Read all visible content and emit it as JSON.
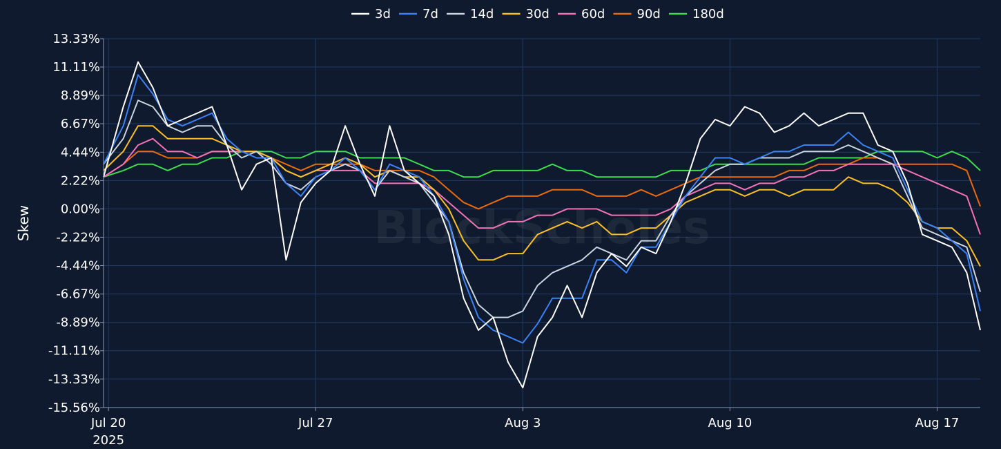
{
  "chart_data": {
    "type": "line",
    "ylabel": "Skew",
    "watermark": "BlockScholes",
    "y_ticks": [
      "13.33%",
      "11.11%",
      "8.89%",
      "6.67%",
      "4.44%",
      "2.22%",
      "0.00%",
      "-2.22%",
      "-4.44%",
      "-6.67%",
      "-8.89%",
      "-11.11%",
      "-13.33%",
      "-15.56%"
    ],
    "y_tick_values": [
      13.33,
      11.11,
      8.89,
      6.67,
      4.44,
      2.22,
      0.0,
      -2.22,
      -4.44,
      -6.67,
      -8.89,
      -11.11,
      -13.33,
      -15.56
    ],
    "ylim": [
      -15.56,
      13.33
    ],
    "x_ticks": [
      {
        "date": "2025-07-20",
        "label": "Jul 20",
        "sublabel": "2025"
      },
      {
        "date": "2025-07-27",
        "label": "Jul 27",
        "sublabel": ""
      },
      {
        "date": "2025-08-03",
        "label": "Aug 3",
        "sublabel": ""
      },
      {
        "date": "2025-08-10",
        "label": "Aug 10",
        "sublabel": ""
      },
      {
        "date": "2025-08-17",
        "label": "Aug 17",
        "sublabel": ""
      }
    ],
    "xlim": [
      "2025-07-19T20:00",
      "2025-08-18T11:00"
    ],
    "grid": true,
    "legend_position": "top-center",
    "x_dates": [
      "2025-07-19T20:00",
      "2025-07-20T12:00",
      "2025-07-21T00:00",
      "2025-07-21T12:00",
      "2025-07-22T00:00",
      "2025-07-22T12:00",
      "2025-07-23T00:00",
      "2025-07-23T12:00",
      "2025-07-24T00:00",
      "2025-07-24T12:00",
      "2025-07-25T00:00",
      "2025-07-25T12:00",
      "2025-07-26T00:00",
      "2025-07-26T12:00",
      "2025-07-27T00:00",
      "2025-07-27T12:00",
      "2025-07-28T00:00",
      "2025-07-28T12:00",
      "2025-07-29T00:00",
      "2025-07-29T12:00",
      "2025-07-30T00:00",
      "2025-07-30T12:00",
      "2025-07-31T00:00",
      "2025-07-31T12:00",
      "2025-08-01T00:00",
      "2025-08-01T12:00",
      "2025-08-02T00:00",
      "2025-08-02T12:00",
      "2025-08-03T00:00",
      "2025-08-03T12:00",
      "2025-08-04T00:00",
      "2025-08-04T12:00",
      "2025-08-05T00:00",
      "2025-08-05T12:00",
      "2025-08-06T00:00",
      "2025-08-06T12:00",
      "2025-08-07T00:00",
      "2025-08-07T12:00",
      "2025-08-08T00:00",
      "2025-08-08T12:00",
      "2025-08-09T00:00",
      "2025-08-09T12:00",
      "2025-08-10T00:00",
      "2025-08-10T12:00",
      "2025-08-11T00:00",
      "2025-08-11T12:00",
      "2025-08-12T00:00",
      "2025-08-12T12:00",
      "2025-08-13T00:00",
      "2025-08-13T12:00",
      "2025-08-14T00:00",
      "2025-08-14T12:00",
      "2025-08-15T00:00",
      "2025-08-15T12:00",
      "2025-08-16T00:00",
      "2025-08-16T12:00",
      "2025-08-17T00:00",
      "2025-08-17T12:00",
      "2025-08-18T00:00",
      "2025-08-18T11:00"
    ],
    "series": [
      {
        "name": "3d",
        "color": "#ffffff",
        "values": [
          2.5,
          8.0,
          11.5,
          9.5,
          6.5,
          7.0,
          7.5,
          8.0,
          5.0,
          1.5,
          3.5,
          4.0,
          -4.0,
          0.5,
          2.0,
          3.0,
          6.5,
          3.5,
          1.0,
          6.5,
          3.0,
          2.0,
          1.0,
          -2.0,
          -7.0,
          -9.5,
          -8.5,
          -12.0,
          -14.0,
          -10.0,
          -8.5,
          -6.0,
          -8.5,
          -5.0,
          -3.5,
          -4.5,
          -3.0,
          -3.5,
          -1.0,
          2.0,
          5.5,
          7.0,
          6.5,
          8.0,
          7.5,
          6.0,
          6.5,
          7.5,
          6.5,
          7.0,
          7.5,
          7.5,
          5.0,
          4.5,
          2.0,
          -2.0,
          -2.5,
          -3.0,
          -5.0,
          -9.5
        ]
      },
      {
        "name": "7d",
        "color": "#3b82f6",
        "values": [
          3.5,
          6.5,
          10.5,
          9.0,
          7.0,
          6.5,
          7.0,
          7.5,
          5.5,
          4.5,
          4.0,
          4.0,
          2.0,
          1.0,
          2.5,
          3.0,
          4.0,
          3.0,
          1.5,
          3.5,
          3.0,
          2.5,
          1.0,
          -1.0,
          -5.5,
          -8.5,
          -9.5,
          -10.0,
          -10.5,
          -9.0,
          -7.0,
          -7.0,
          -7.0,
          -4.0,
          -4.0,
          -5.0,
          -3.0,
          -3.0,
          -1.0,
          1.0,
          2.5,
          4.0,
          4.0,
          3.5,
          4.0,
          4.5,
          4.5,
          5.0,
          5.0,
          5.0,
          6.0,
          5.0,
          4.5,
          4.0,
          1.5,
          -1.0,
          -1.5,
          -2.5,
          -3.5,
          -8.0
        ]
      },
      {
        "name": "14d",
        "color": "#cbd5e1",
        "values": [
          3.5,
          5.5,
          8.5,
          8.0,
          6.5,
          6.0,
          6.5,
          6.5,
          5.0,
          4.0,
          4.5,
          3.5,
          2.0,
          1.5,
          2.5,
          3.0,
          3.5,
          3.0,
          1.5,
          3.0,
          2.5,
          2.0,
          0.5,
          -1.0,
          -5.0,
          -7.5,
          -8.5,
          -8.5,
          -8.0,
          -6.0,
          -5.0,
          -4.5,
          -4.0,
          -3.0,
          -3.5,
          -4.0,
          -2.5,
          -2.5,
          -0.5,
          1.0,
          2.0,
          3.0,
          3.5,
          3.5,
          4.0,
          4.0,
          4.0,
          4.5,
          4.5,
          4.5,
          5.0,
          4.5,
          4.0,
          3.5,
          1.0,
          -1.5,
          -2.0,
          -2.5,
          -3.0,
          -6.5
        ]
      },
      {
        "name": "30d",
        "color": "#fbbf24",
        "values": [
          3.0,
          4.5,
          6.5,
          6.5,
          5.5,
          5.5,
          5.5,
          5.5,
          5.0,
          4.5,
          4.5,
          4.0,
          3.0,
          2.5,
          3.0,
          3.5,
          4.0,
          3.5,
          2.5,
          3.0,
          2.5,
          2.5,
          1.5,
          0.0,
          -2.5,
          -4.0,
          -4.0,
          -3.5,
          -3.5,
          -2.0,
          -1.5,
          -1.0,
          -1.5,
          -1.0,
          -2.0,
          -2.0,
          -1.5,
          -1.5,
          -0.5,
          0.5,
          1.0,
          1.5,
          1.5,
          1.0,
          1.5,
          1.5,
          1.0,
          1.5,
          1.5,
          1.5,
          2.5,
          2.0,
          2.0,
          1.5,
          0.5,
          -1.0,
          -1.5,
          -1.5,
          -2.5,
          -4.5
        ]
      },
      {
        "name": "60d",
        "color": "#f472b6",
        "values": [
          2.5,
          3.5,
          5.0,
          5.5,
          4.5,
          4.5,
          4.0,
          4.5,
          4.5,
          4.5,
          4.5,
          4.0,
          3.0,
          2.5,
          3.0,
          3.0,
          3.0,
          3.0,
          2.0,
          2.0,
          2.0,
          2.0,
          1.5,
          0.5,
          -0.5,
          -1.5,
          -1.5,
          -1.0,
          -1.0,
          -0.5,
          -0.5,
          0.0,
          0.0,
          0.0,
          -0.5,
          -0.5,
          -0.5,
          -0.5,
          0.0,
          1.0,
          1.5,
          2.0,
          2.0,
          1.5,
          2.0,
          2.0,
          2.5,
          2.5,
          3.0,
          3.0,
          3.5,
          3.5,
          3.5,
          3.5,
          3.0,
          2.5,
          2.0,
          1.5,
          1.0,
          -2.0
        ]
      },
      {
        "name": "90d",
        "color": "#ea6a0c",
        "values": [
          2.5,
          3.5,
          4.5,
          4.5,
          4.0,
          4.0,
          4.0,
          4.5,
          4.5,
          4.5,
          4.5,
          4.0,
          3.5,
          3.0,
          3.5,
          3.5,
          3.5,
          3.5,
          3.0,
          3.0,
          3.0,
          3.0,
          2.5,
          1.5,
          0.5,
          0.0,
          0.5,
          1.0,
          1.0,
          1.0,
          1.5,
          1.5,
          1.5,
          1.0,
          1.0,
          1.0,
          1.5,
          1.0,
          1.5,
          2.0,
          2.5,
          2.5,
          2.5,
          2.5,
          2.5,
          2.5,
          3.0,
          3.0,
          3.5,
          3.5,
          3.5,
          4.0,
          4.0,
          3.5,
          3.5,
          3.5,
          3.5,
          3.5,
          3.0,
          0.2
        ]
      },
      {
        "name": "180d",
        "color": "#3ddc4a",
        "values": [
          2.5,
          3.0,
          3.5,
          3.5,
          3.0,
          3.5,
          3.5,
          4.0,
          4.0,
          4.5,
          4.5,
          4.5,
          4.0,
          4.0,
          4.5,
          4.5,
          4.5,
          4.0,
          4.0,
          4.0,
          4.0,
          3.5,
          3.0,
          3.0,
          2.5,
          2.5,
          3.0,
          3.0,
          3.0,
          3.0,
          3.5,
          3.0,
          3.0,
          2.5,
          2.5,
          2.5,
          2.5,
          2.5,
          3.0,
          3.0,
          3.0,
          3.5,
          3.5,
          3.5,
          3.5,
          3.5,
          3.5,
          3.5,
          4.0,
          4.0,
          4.0,
          4.0,
          4.5,
          4.5,
          4.5,
          4.5,
          4.0,
          4.5,
          4.0,
          3.0
        ]
      }
    ]
  }
}
